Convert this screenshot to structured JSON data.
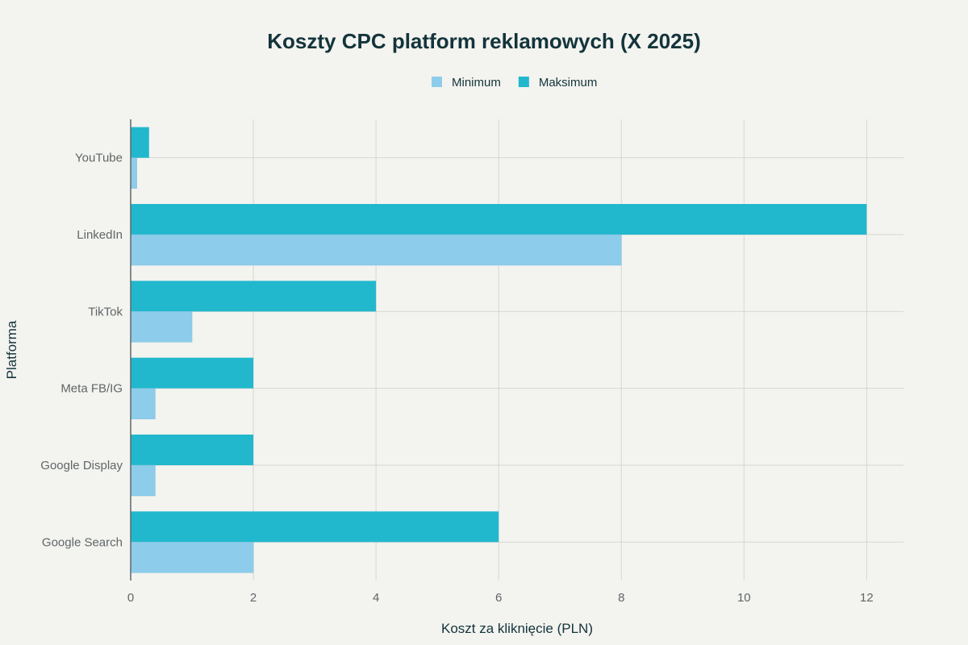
{
  "chart_data": {
    "type": "bar",
    "orientation": "horizontal",
    "title": "Koszty CPC platform reklamowych (X 2025)",
    "xlabel": "Koszt za kliknięcie (PLN)",
    "ylabel": "Platforma",
    "categories": [
      "Google Search",
      "Google Display",
      "Meta FB/IG",
      "TikTok",
      "LinkedIn",
      "YouTube"
    ],
    "series": [
      {
        "name": "Minimum",
        "color": "#8dcdeb",
        "values": [
          2,
          0.4,
          0.4,
          1,
          8,
          0.1
        ]
      },
      {
        "name": "Maksimum",
        "color": "#21b8cd",
        "values": [
          6,
          2,
          2,
          4,
          12,
          0.3
        ]
      }
    ],
    "xlim": [
      0,
      12.6
    ],
    "xticks": [
      "0",
      "2",
      "4",
      "6",
      "8",
      "10",
      "12"
    ],
    "grid": true,
    "legend": "top-center"
  }
}
